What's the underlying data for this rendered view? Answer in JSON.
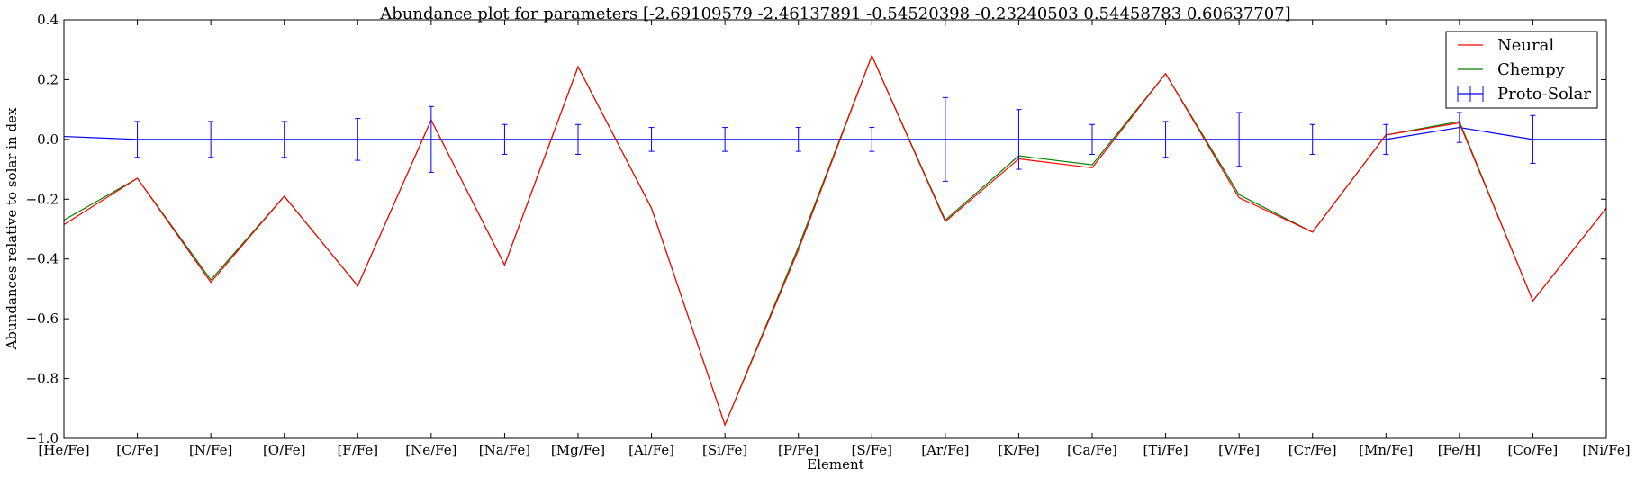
{
  "chart_data": {
    "type": "line",
    "title": "Abundance plot for parameters [-2.69109579 -2.46137891 -0.54520398 -0.23240503  0.54458783  0.60637707]",
    "xlabel": "Element",
    "ylabel": "Abundances relative to solar in dex",
    "categories": [
      "[He/Fe]",
      "[C/Fe]",
      "[N/Fe]",
      "[O/Fe]",
      "[F/Fe]",
      "[Ne/Fe]",
      "[Na/Fe]",
      "[Mg/Fe]",
      "[Al/Fe]",
      "[Si/Fe]",
      "[P/Fe]",
      "[S/Fe]",
      "[Ar/Fe]",
      "[K/Fe]",
      "[Ca/Fe]",
      "[Ti/Fe]",
      "[V/Fe]",
      "[Cr/Fe]",
      "[Mn/Fe]",
      "[Fe/H]",
      "[Co/Fe]",
      "[Ni/Fe]"
    ],
    "ylim": [
      -1.0,
      0.4
    ],
    "yticks": [
      -1.0,
      -0.8,
      -0.6,
      -0.4,
      -0.2,
      0.0,
      0.2,
      0.4
    ],
    "ytick_labels": [
      "−1.0",
      "−0.8",
      "−0.6",
      "−0.4",
      "−0.2",
      "0.0",
      "0.2",
      "0.4"
    ],
    "grid": false,
    "legend_position": "top-right",
    "series": [
      {
        "name": "Neural",
        "color": "#ff0000",
        "values": [
          -0.285,
          -0.13,
          -0.478,
          -0.19,
          -0.49,
          0.065,
          -0.42,
          0.243,
          -0.23,
          -0.955,
          -0.37,
          0.28,
          -0.275,
          -0.065,
          -0.095,
          0.22,
          -0.195,
          -0.31,
          0.015,
          0.055,
          -0.54,
          -0.23
        ]
      },
      {
        "name": "Chempy",
        "color": "#008000",
        "values": [
          -0.27,
          -0.13,
          -0.47,
          -0.19,
          -0.49,
          0.065,
          -0.42,
          0.243,
          -0.23,
          -0.955,
          -0.36,
          0.28,
          -0.27,
          -0.055,
          -0.085,
          0.22,
          -0.185,
          -0.31,
          0.015,
          0.06,
          -0.54,
          -0.23
        ]
      },
      {
        "name": "Proto-Solar",
        "color": "#0000ff",
        "values": [
          0.01,
          0.0,
          0.0,
          0.0,
          0.0,
          0.0,
          0.0,
          0.0,
          0.0,
          0.0,
          0.0,
          0.0,
          0.0,
          0.0,
          0.0,
          0.0,
          0.0,
          0.0,
          0.0,
          0.04,
          0.0,
          0.0
        ],
        "errors": [
          null,
          0.06,
          0.06,
          0.06,
          0.07,
          0.11,
          0.05,
          0.05,
          0.04,
          0.04,
          0.04,
          0.04,
          0.14,
          0.1,
          0.05,
          0.06,
          0.09,
          0.05,
          0.05,
          0.05,
          0.08,
          null
        ]
      }
    ]
  }
}
